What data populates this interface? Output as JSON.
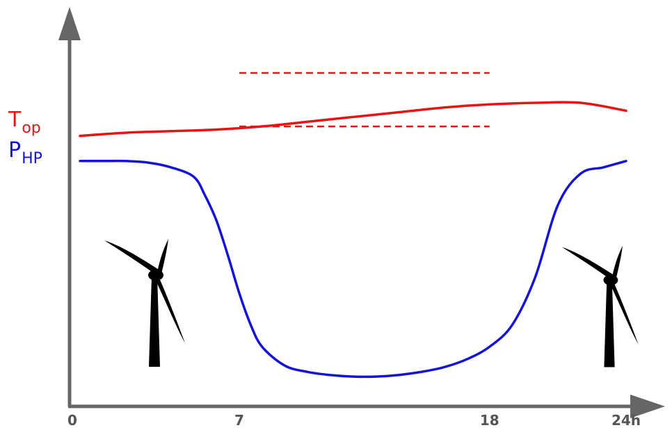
{
  "chart_data": {
    "type": "line",
    "x_ticks": [
      {
        "value": 0,
        "label": "0"
      },
      {
        "value": 7,
        "label": "7"
      },
      {
        "value": 18,
        "label": "18"
      },
      {
        "value": 24,
        "label": "24h"
      }
    ],
    "xlim": [
      0,
      24
    ],
    "ylim": [
      0,
      1
    ],
    "grid": false,
    "axis_color": "#666666",
    "series": [
      {
        "label_main": "T",
        "label_sub": "op",
        "color": "#e81414",
        "x": [
          0,
          2,
          4,
          6,
          8,
          10,
          12,
          14,
          16,
          18,
          20,
          22,
          24
        ],
        "y": [
          0.8,
          0.81,
          0.815,
          0.82,
          0.83,
          0.845,
          0.86,
          0.875,
          0.89,
          0.9,
          0.905,
          0.905,
          0.88
        ]
      },
      {
        "label_main": "P",
        "label_sub": "HP",
        "color": "#1414d8",
        "x": [
          0,
          1,
          2,
          3,
          4,
          5,
          5.5,
          6,
          6.5,
          7,
          7.5,
          8,
          9,
          10,
          11,
          12,
          13,
          14,
          15,
          16,
          17,
          18,
          19,
          20,
          21,
          22,
          23,
          24
        ],
        "y": [
          0.72,
          0.72,
          0.72,
          0.715,
          0.7,
          0.67,
          0.61,
          0.53,
          0.42,
          0.3,
          0.2,
          0.13,
          0.07,
          0.05,
          0.04,
          0.035,
          0.035,
          0.04,
          0.05,
          0.065,
          0.09,
          0.13,
          0.2,
          0.35,
          0.58,
          0.68,
          0.7,
          0.72
        ]
      }
    ],
    "bounds": {
      "color": "#e81414",
      "style": "dashed",
      "x_start": 7,
      "x_end": 18,
      "y_upper": 1.0,
      "y_lower": 0.83
    },
    "icons": [
      "wind-turbine-icon",
      "wind-turbine-icon"
    ]
  }
}
